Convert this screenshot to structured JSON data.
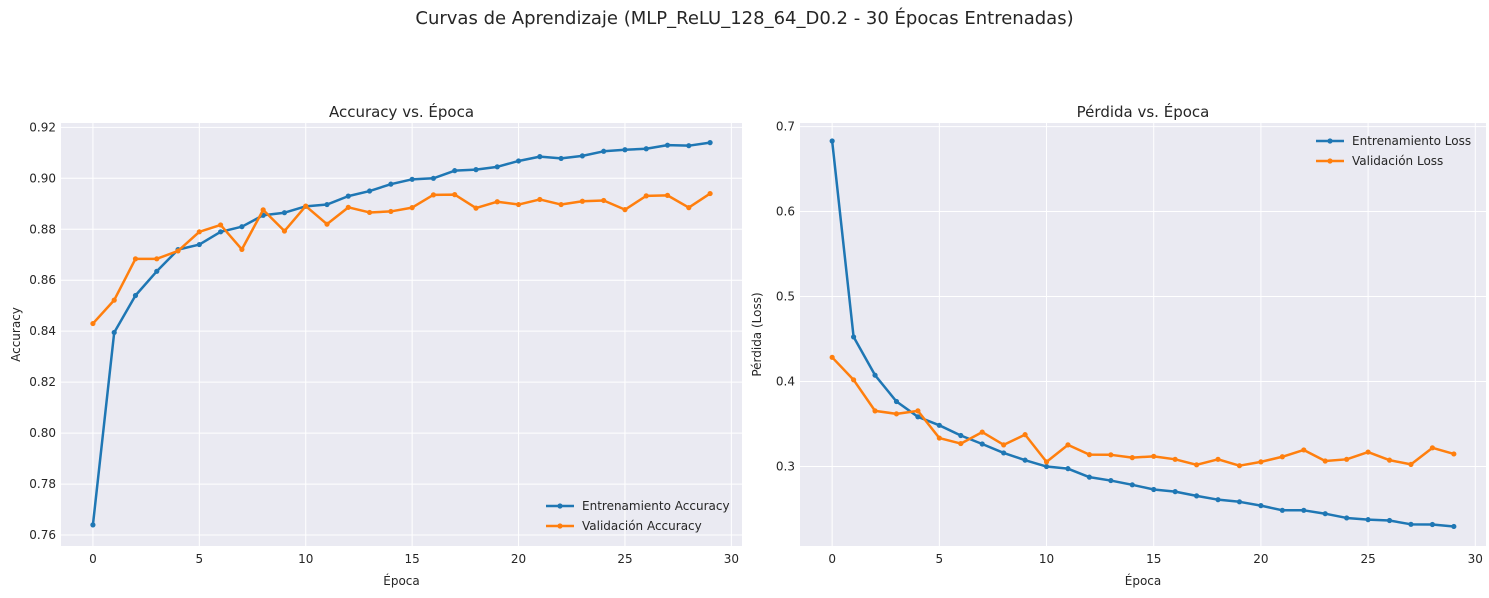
{
  "figure": {
    "title": "Curvas de Aprendizaje (MLP_ReLU_128_64_D0.2 - 30 Épocas Entrenadas)"
  },
  "colors": {
    "train": "#1f77b4",
    "val": "#ff7f0e",
    "plot_bg": "#eaeaf2",
    "grid": "#ffffff"
  },
  "chart_data": [
    {
      "type": "line",
      "title": "Accuracy vs. Época",
      "xlabel": "Época",
      "ylabel": "Accuracy",
      "xlim": [
        -1.5,
        30.5
      ],
      "ylim": [
        0.7557,
        0.9217
      ],
      "xticks": [
        0,
        5,
        10,
        15,
        20,
        25,
        30
      ],
      "yticks": [
        0.76,
        0.78,
        0.8,
        0.82,
        0.84,
        0.86,
        0.88,
        0.9,
        0.92
      ],
      "ytick_labels": [
        "0.76",
        "0.78",
        "0.80",
        "0.82",
        "0.84",
        "0.86",
        "0.88",
        "0.90",
        "0.92"
      ],
      "grid": true,
      "legend_position": "lower-right",
      "x": [
        0,
        1,
        2,
        3,
        4,
        5,
        6,
        7,
        8,
        9,
        10,
        11,
        12,
        13,
        14,
        15,
        16,
        17,
        18,
        19,
        20,
        21,
        22,
        23,
        24,
        25,
        26,
        27,
        28,
        29
      ],
      "series": [
        {
          "name": "Entrenamiento Accuracy",
          "color": "#1f77b4",
          "values": [
            0.764,
            0.8395,
            0.854,
            0.8635,
            0.872,
            0.874,
            0.879,
            0.881,
            0.8855,
            0.8865,
            0.889,
            0.8897,
            0.893,
            0.895,
            0.8977,
            0.8996,
            0.9,
            0.903,
            0.9034,
            0.9045,
            0.9068,
            0.9085,
            0.9078,
            0.9088,
            0.9106,
            0.9112,
            0.9116,
            0.913,
            0.9128,
            0.914
          ]
        },
        {
          "name": "Validación Accuracy",
          "color": "#ff7f0e",
          "values": [
            0.843,
            0.8522,
            0.8684,
            0.8684,
            0.8715,
            0.879,
            0.8817,
            0.8721,
            0.8876,
            0.8793,
            0.8891,
            0.882,
            0.8886,
            0.8866,
            0.887,
            0.8885,
            0.8935,
            0.8936,
            0.8883,
            0.8908,
            0.8897,
            0.8917,
            0.8897,
            0.891,
            0.8913,
            0.8877,
            0.8931,
            0.8933,
            0.8885,
            0.894
          ]
        }
      ]
    },
    {
      "type": "line",
      "title": "Pérdida vs. Época",
      "xlabel": "Época",
      "ylabel": "Pérdida (Loss)",
      "xlim": [
        -1.5,
        30.5
      ],
      "ylim": [
        0.2065,
        0.7042
      ],
      "xticks": [
        0,
        5,
        10,
        15,
        20,
        25,
        30
      ],
      "yticks": [
        0.3,
        0.4,
        0.5,
        0.6,
        0.7
      ],
      "ytick_labels": [
        "0.3",
        "0.4",
        "0.5",
        "0.6",
        "0.7"
      ],
      "grid": true,
      "legend_position": "upper-right",
      "x": [
        0,
        1,
        2,
        3,
        4,
        5,
        6,
        7,
        8,
        9,
        10,
        11,
        12,
        13,
        14,
        15,
        16,
        17,
        18,
        19,
        20,
        21,
        22,
        23,
        24,
        25,
        26,
        27,
        28,
        29
      ],
      "series": [
        {
          "name": "Entrenamiento Loss",
          "color": "#1f77b4",
          "values": [
            0.683,
            0.4525,
            0.4075,
            0.3765,
            0.3585,
            0.3485,
            0.3365,
            0.3265,
            0.316,
            0.3075,
            0.3,
            0.2975,
            0.2875,
            0.2835,
            0.2785,
            0.273,
            0.2705,
            0.2655,
            0.261,
            0.2585,
            0.254,
            0.2485,
            0.2485,
            0.2445,
            0.2395,
            0.2375,
            0.2365,
            0.232,
            0.2318,
            0.2295
          ]
        },
        {
          "name": "Validación Loss",
          "color": "#ff7f0e",
          "values": [
            0.4285,
            0.402,
            0.3655,
            0.362,
            0.3655,
            0.3335,
            0.327,
            0.3405,
            0.3255,
            0.3375,
            0.3055,
            0.3255,
            0.314,
            0.3138,
            0.3105,
            0.312,
            0.3085,
            0.302,
            0.3085,
            0.301,
            0.3055,
            0.3115,
            0.3195,
            0.3065,
            0.3085,
            0.317,
            0.3075,
            0.3025,
            0.322,
            0.3148
          ]
        }
      ]
    }
  ]
}
